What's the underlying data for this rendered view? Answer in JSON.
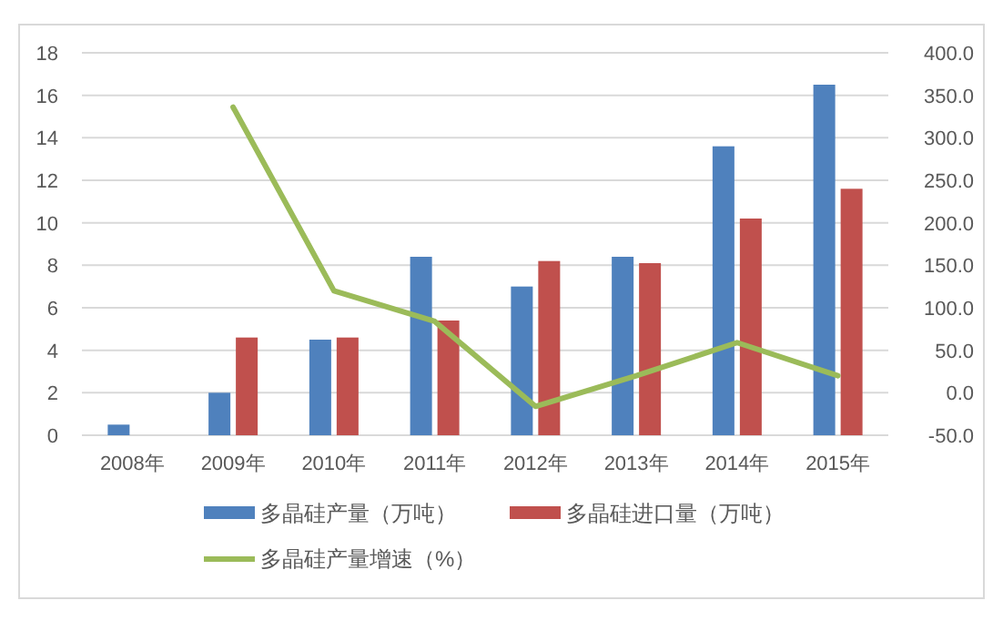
{
  "chart_data": {
    "type": "bar",
    "categories": [
      "2008年",
      "2009年",
      "2010年",
      "2011年",
      "2012年",
      "2013年",
      "2014年",
      "2015年"
    ],
    "series": [
      {
        "name": "多晶硅产量（万吨）",
        "color": "#4f81bd",
        "values": [
          0.5,
          2.0,
          4.5,
          8.4,
          7.0,
          8.4,
          13.6,
          16.5
        ]
      },
      {
        "name": "多晶硅进口量（万吨）",
        "color": "#c0504d",
        "values": [
          null,
          4.6,
          4.6,
          5.4,
          8.2,
          8.1,
          10.2,
          11.6
        ]
      },
      {
        "name": "多晶硅产量增速（%）",
        "type": "line",
        "axis": "y2",
        "color": "#9bbb59",
        "values": [
          null,
          336,
          120,
          84,
          -16,
          20,
          59,
          20
        ]
      }
    ],
    "ylim": [
      0,
      18
    ],
    "yticks": [
      0,
      2,
      4,
      6,
      8,
      10,
      12,
      14,
      16,
      18
    ],
    "y2lim": [
      -50,
      400
    ],
    "y2ticks": [
      {
        "value": -50,
        "label": "-50.0"
      },
      {
        "value": 0,
        "label": "0.0"
      },
      {
        "value": 50,
        "label": "50.0"
      },
      {
        "value": 100,
        "label": "100.0"
      },
      {
        "value": 150,
        "label": "150.0"
      },
      {
        "value": 200,
        "label": "200.0"
      },
      {
        "value": 250,
        "label": "250.0"
      },
      {
        "value": 300,
        "label": "300.0"
      },
      {
        "value": 350,
        "label": "350.0"
      },
      {
        "value": 400,
        "label": "400.0"
      }
    ],
    "grid": "y",
    "legend": "bottom"
  }
}
